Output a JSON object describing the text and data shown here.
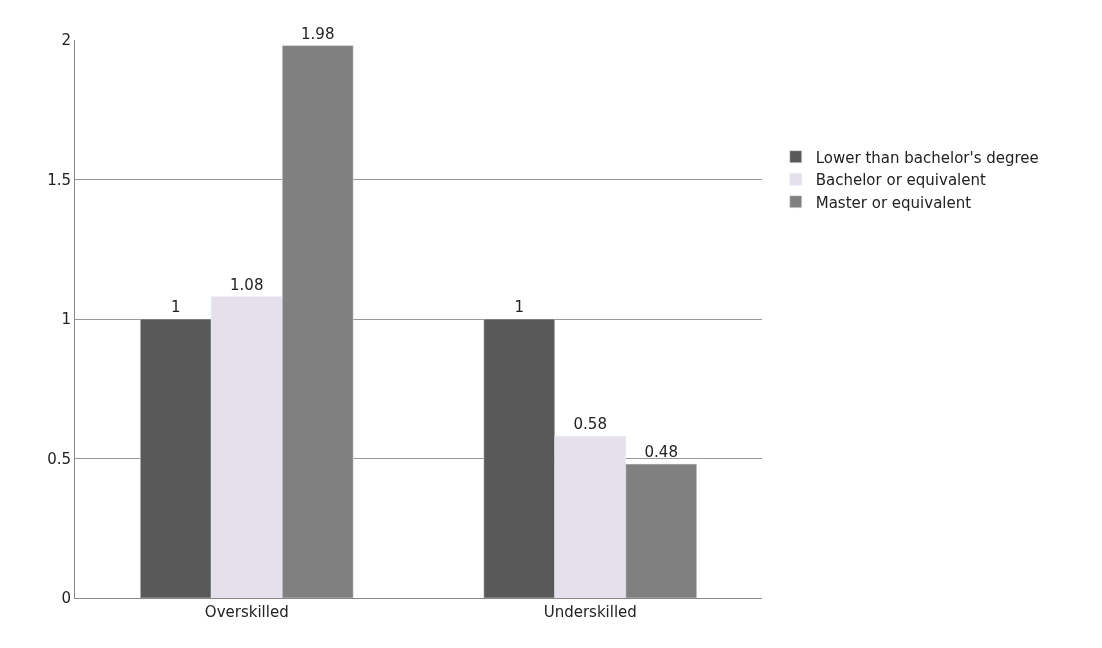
{
  "chart_data": {
    "type": "bar",
    "categories": [
      "Overskilled",
      "Underskilled"
    ],
    "series": [
      {
        "name": "Lower than bachelor's degree",
        "color": "#595959",
        "values": [
          1,
          1
        ]
      },
      {
        "name": "Bachelor or equivalent",
        "color": "#e6e0ec",
        "values": [
          1.08,
          0.58
        ]
      },
      {
        "name": "Master or equivalent",
        "color": "#808080",
        "values": [
          1.98,
          0.48
        ]
      }
    ],
    "ylim": [
      0,
      2
    ],
    "yticks": [
      0,
      0.5,
      1,
      1.5,
      2
    ],
    "grid": "y",
    "legend": "right",
    "data_labels": true
  }
}
